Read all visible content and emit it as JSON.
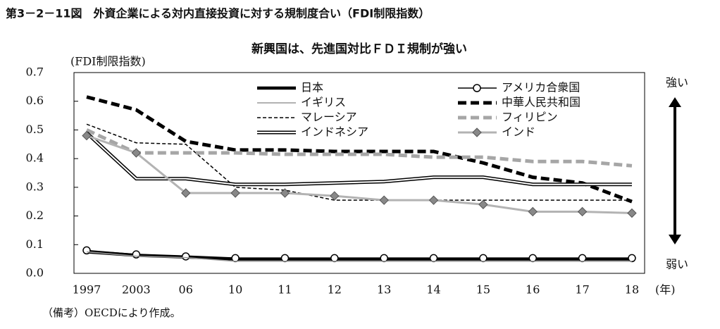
{
  "chart_data": {
    "type": "line",
    "figure_title": "第3－2－11図　外資企業による対内直接投資に対する規制度合い（FDI制限指数）",
    "title": "新興国は、先進国対比ＦＤＩ規制が強い",
    "y_label": "(FDI制限指数)",
    "x_unit": "(年)",
    "strong_label": "強い",
    "weak_label": "弱い",
    "note": "（備考）OECDにより作成。",
    "categories": [
      "1997",
      "2003",
      "06",
      "10",
      "11",
      "12",
      "13",
      "14",
      "15",
      "16",
      "17",
      "18"
    ],
    "ylim": [
      0,
      0.7
    ],
    "yticks": [
      {
        "value": 0,
        "label": "0.0"
      },
      0.1,
      0.2,
      0.3,
      0.4,
      0.5,
      0.6,
      0.7
    ],
    "series": [
      {
        "name": "日本",
        "color": "#000000",
        "style": "thick",
        "values": [
          0.075,
          0.063,
          0.057,
          0.05,
          0.05,
          0.05,
          0.05,
          0.05,
          0.05,
          0.05,
          0.05,
          0.05
        ]
      },
      {
        "name": "アメリカ合衆国",
        "color": "#000000",
        "style": "thin",
        "marker": "circle",
        "values": [
          0.08,
          0.066,
          0.059,
          0.053,
          0.053,
          0.053,
          0.053,
          0.053,
          0.053,
          0.053,
          0.053,
          0.053
        ]
      },
      {
        "name": "イギリス",
        "color": "#999999",
        "style": "thin",
        "values": [
          0.075,
          0.06,
          0.055,
          0.042,
          0.042,
          0.042,
          0.042,
          0.042,
          0.042,
          0.042,
          0.042,
          0.042
        ]
      },
      {
        "name": "中華人民共和国",
        "color": "#000000",
        "style": "thick-dashed",
        "values": [
          0.615,
          0.57,
          0.46,
          0.43,
          0.43,
          0.425,
          0.425,
          0.425,
          0.385,
          0.335,
          0.315,
          0.25
        ]
      },
      {
        "name": "マレーシア",
        "color": "#000000",
        "style": "dashed",
        "values": [
          0.52,
          0.455,
          0.45,
          0.3,
          0.29,
          0.255,
          0.255,
          0.255,
          0.255,
          0.255,
          0.255,
          0.255
        ]
      },
      {
        "name": "フィリピン",
        "color": "#a6a6a6",
        "style": "thick-dashed",
        "values": [
          0.5,
          0.42,
          0.42,
          0.42,
          0.415,
          0.415,
          0.415,
          0.405,
          0.405,
          0.39,
          0.39,
          0.375
        ]
      },
      {
        "name": "インドネシア",
        "color": "#000000",
        "style": "double",
        "values": [
          0.49,
          0.33,
          0.33,
          0.31,
          0.31,
          0.315,
          0.32,
          0.335,
          0.335,
          0.31,
          0.31,
          0.31
        ]
      },
      {
        "name": "インド",
        "color": "#b3b3b3",
        "style": "medium",
        "marker": "diamond",
        "values": [
          0.48,
          0.42,
          0.28,
          0.28,
          0.28,
          0.27,
          0.255,
          0.255,
          0.24,
          0.215,
          0.215,
          0.21
        ]
      }
    ]
  }
}
